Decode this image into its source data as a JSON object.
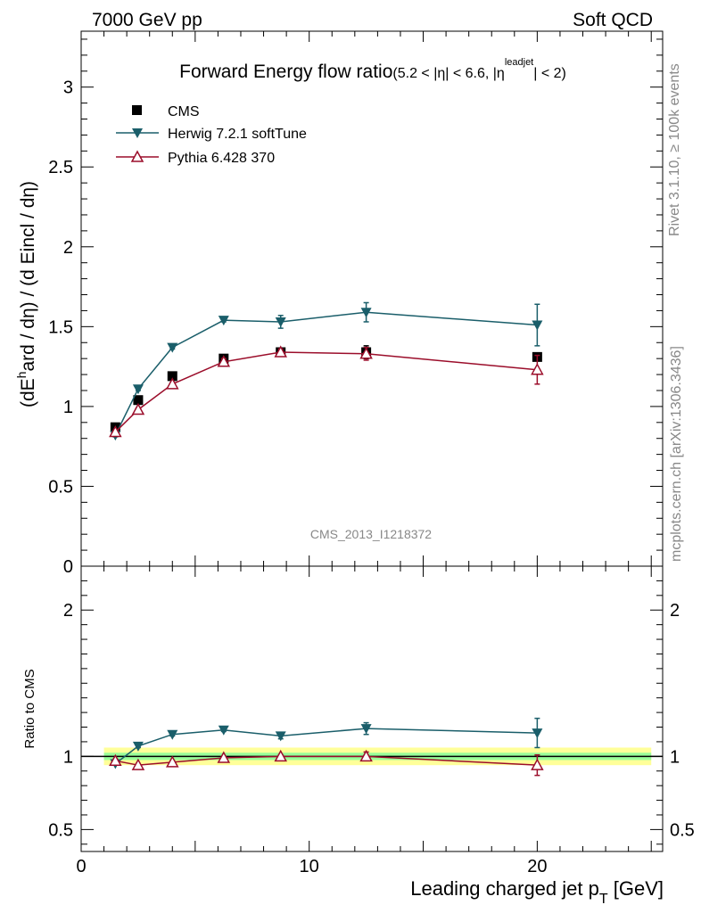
{
  "header": {
    "left": "7000 GeV pp",
    "right": "Soft QCD"
  },
  "side_labels": {
    "rivet": "Rivet 3.1.10, ≥ 100k events",
    "mcplots": "mcplots.cern.ch [arXiv:1306.3436]"
  },
  "chart_data": [
    {
      "type": "line",
      "title_main": "Forward Energy flow ratio",
      "title_sub": "(5.2 < |η| < 6.6, |η",
      "title_sup": "leadjet",
      "title_end": "| < 2)",
      "ylabel": "(dE",
      "ylabel_sup": "h",
      "ylabel_rest": "ard / dη) / (d Eincl / dη)",
      "watermark": "CMS_2013_I1218372",
      "xlim": [
        0,
        25.5
      ],
      "ylim": [
        0,
        3.35
      ],
      "yticks": [
        "0",
        "0.5",
        "1",
        "1.5",
        "2",
        "2.5",
        "3"
      ],
      "ytick_values": [
        0,
        0.5,
        1,
        1.5,
        2,
        2.5,
        3
      ],
      "x": [
        1.5,
        2.5,
        4.0,
        6.25,
        8.75,
        12.5,
        20.0
      ],
      "series": [
        {
          "name": "CMS",
          "color": "#000000",
          "marker": "square",
          "values": [
            0.87,
            1.04,
            1.19,
            1.3,
            1.34,
            1.34,
            1.31
          ],
          "errors": [
            0.02,
            0.02,
            0.02,
            0.02,
            0.02,
            0.04,
            0.02
          ]
        },
        {
          "name": "Herwig 7.2.1 softTune",
          "color": "#1a5e6a",
          "marker": "triangle-down",
          "values": [
            0.82,
            1.11,
            1.37,
            1.54,
            1.53,
            1.59,
            1.51
          ],
          "errors": [
            0.01,
            0.01,
            0.01,
            0.01,
            0.04,
            0.06,
            0.13
          ]
        },
        {
          "name": "Pythia 6.428 370",
          "color": "#9b0d2a",
          "marker": "triangle-up-open",
          "values": [
            0.84,
            0.98,
            1.14,
            1.28,
            1.34,
            1.33,
            1.23
          ],
          "errors": [
            0.01,
            0.01,
            0.01,
            0.02,
            0.02,
            0.04,
            0.09
          ]
        }
      ]
    },
    {
      "type": "line",
      "ylabel": "Ratio to CMS",
      "xlabel": "Leading charged jet p",
      "xlabel_sub": "T",
      "xlabel_end": " [GeV]",
      "xlim": [
        0,
        25.5
      ],
      "ylim": [
        0.35,
        2.3
      ],
      "xticks": [
        "0",
        "10",
        "20"
      ],
      "xtick_values": [
        0,
        10,
        20
      ],
      "yticks": [
        "0.5",
        "1",
        "2"
      ],
      "ytick_values": [
        0.5,
        1,
        2
      ],
      "x": [
        1.5,
        2.5,
        4.0,
        6.25,
        8.75,
        12.5,
        20.0
      ],
      "bands": {
        "x_start": 1.0,
        "x_end": 25.0,
        "yellow_half": 0.06,
        "green_half": 0.025
      },
      "series": [
        {
          "name": "Herwig 7.2.1 softTune",
          "color": "#1a5e6a",
          "marker": "triangle-down",
          "values": [
            0.95,
            1.07,
            1.15,
            1.18,
            1.14,
            1.19,
            1.16
          ],
          "errors": [
            0.01,
            0.01,
            0.01,
            0.01,
            0.02,
            0.04,
            0.1
          ]
        },
        {
          "name": "Pythia 6.428 370",
          "color": "#9b0d2a",
          "marker": "triangle-up-open",
          "values": [
            0.97,
            0.94,
            0.96,
            0.99,
            1.0,
            1.0,
            0.94
          ],
          "errors": [
            0.01,
            0.01,
            0.01,
            0.01,
            0.01,
            0.03,
            0.07
          ]
        }
      ]
    }
  ]
}
